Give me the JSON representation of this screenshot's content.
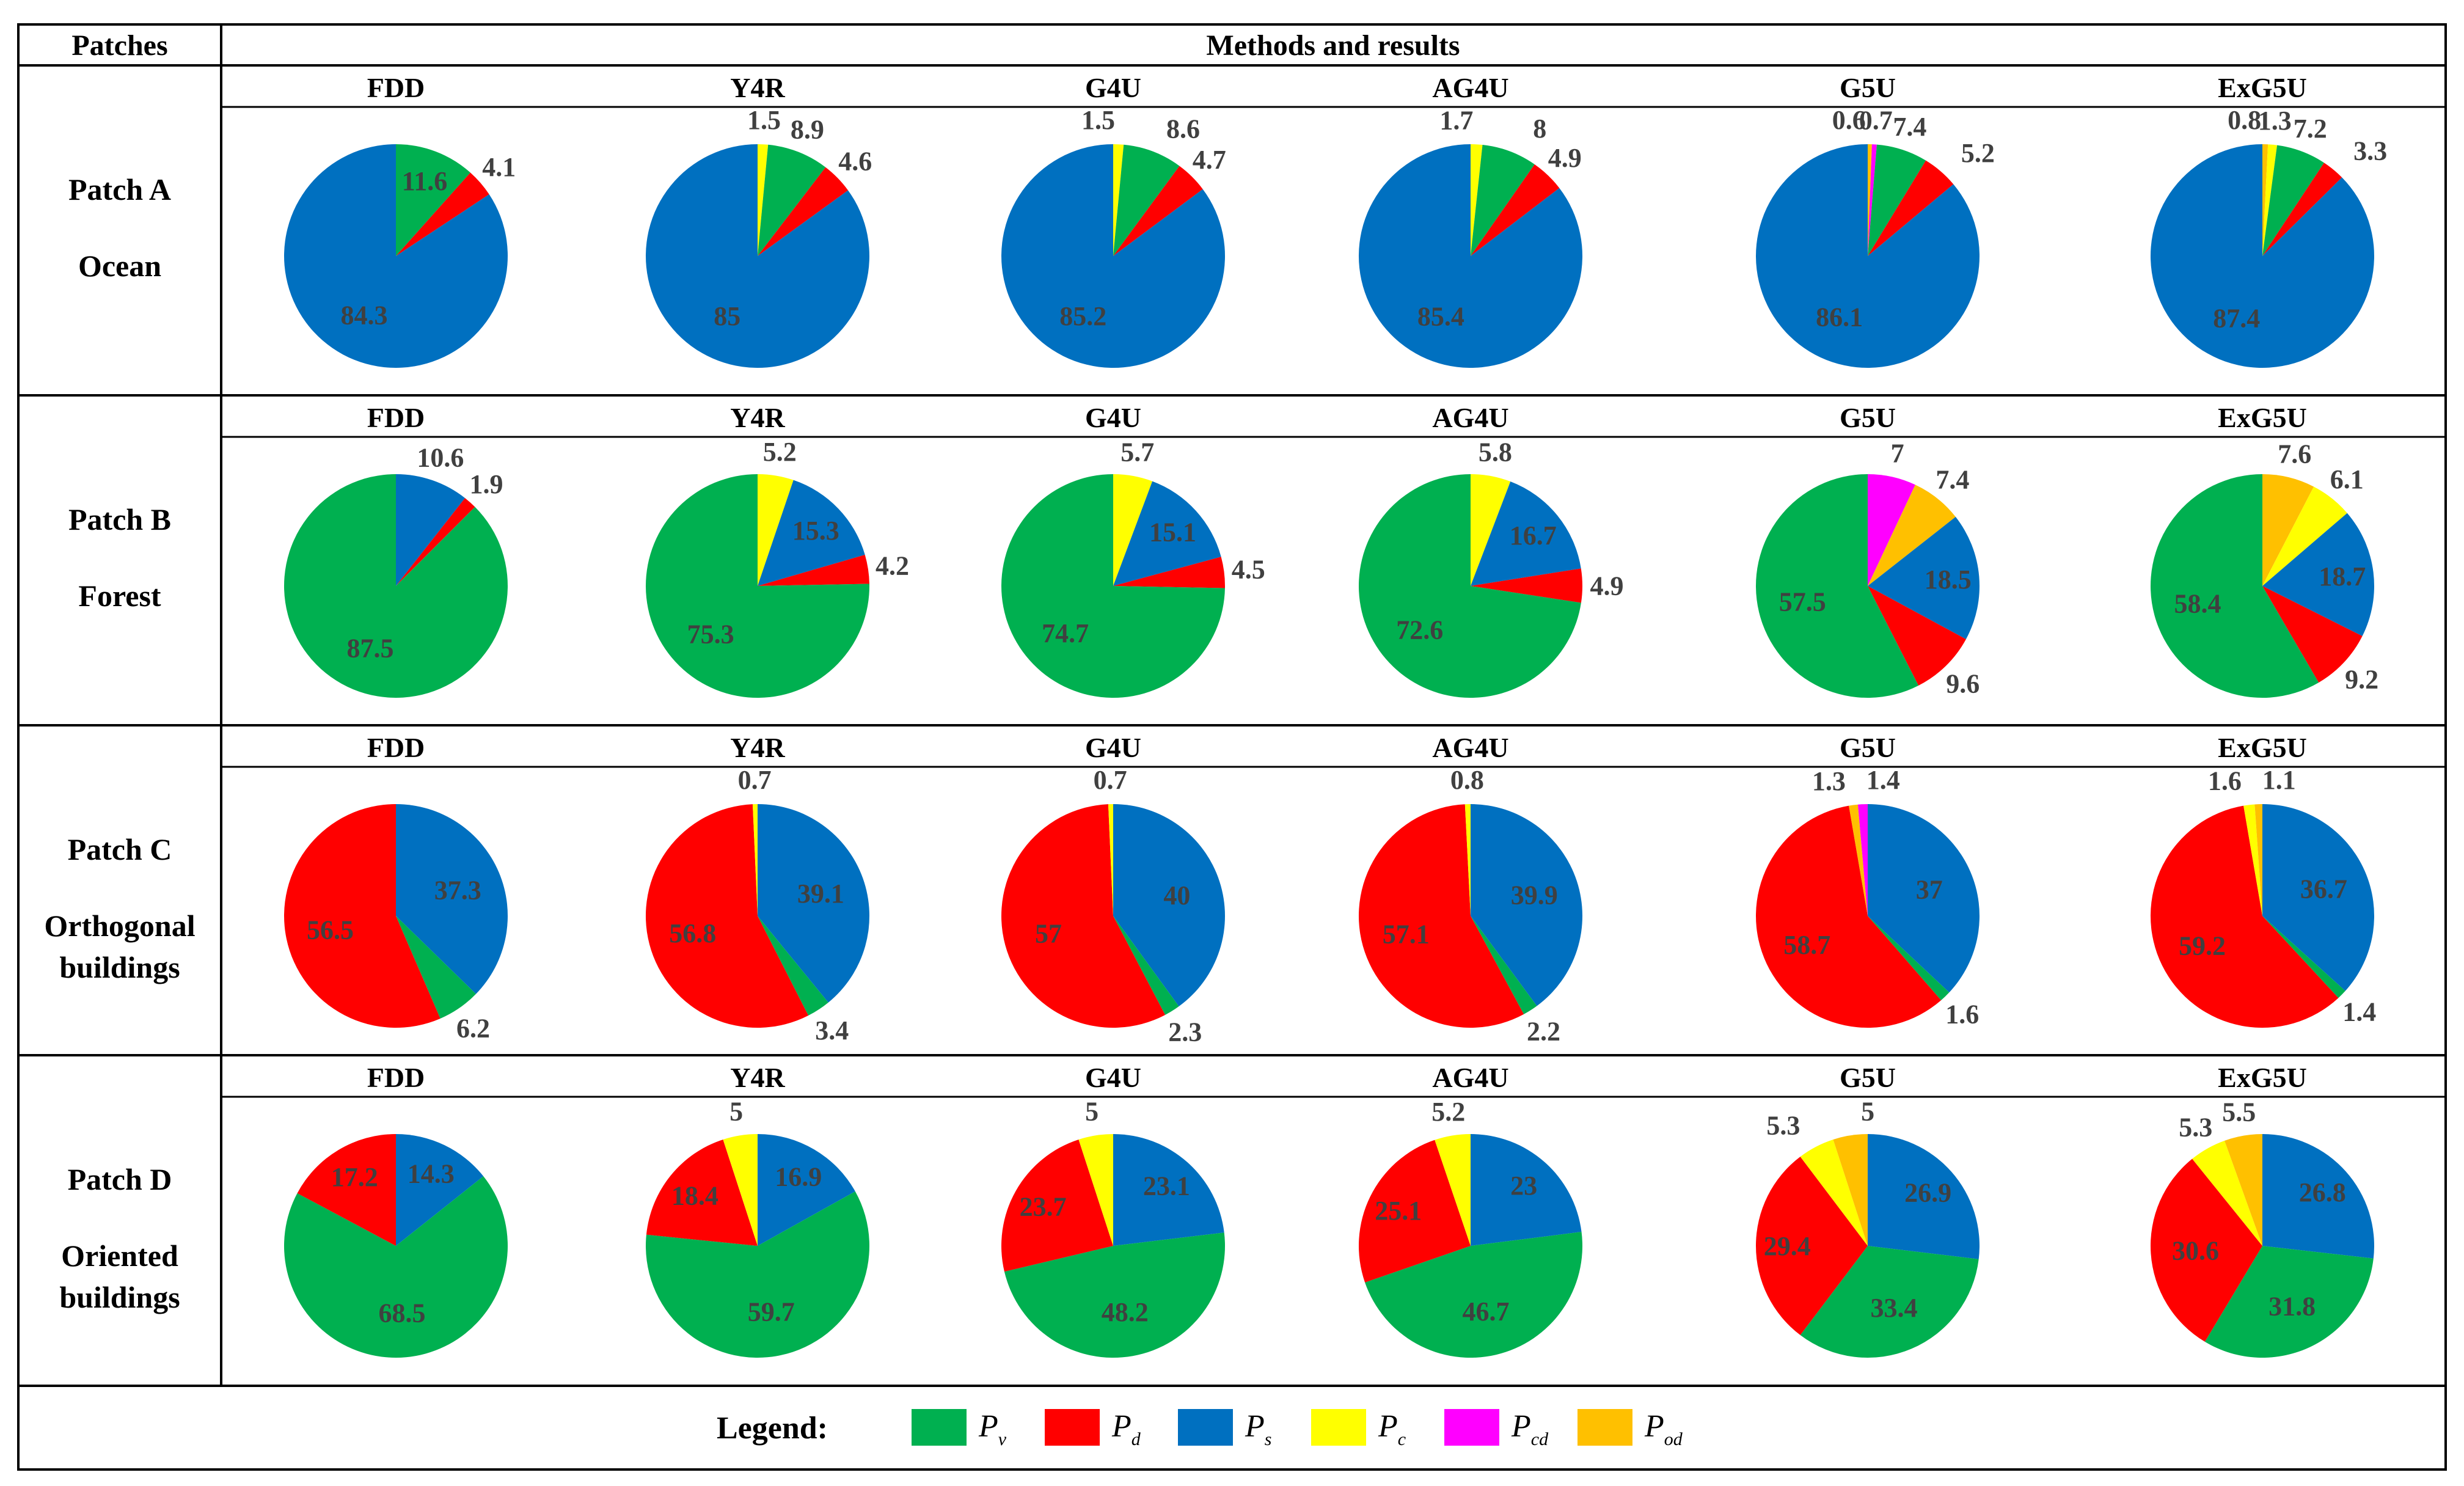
{
  "header": {
    "patches": "Patches",
    "methods": "Methods and results"
  },
  "colors": {
    "Pv": "#00b050",
    "Pd": "#ff0000",
    "Ps": "#0070c0",
    "Pc": "#ffff00",
    "Pcd": "#ff00ff",
    "Pod": "#ffc000"
  },
  "legend": {
    "title": "Legend:",
    "items": [
      {
        "key": "Pv",
        "base": "P",
        "sub": "v"
      },
      {
        "key": "Pd",
        "base": "P",
        "sub": "d"
      },
      {
        "key": "Ps",
        "base": "P",
        "sub": "s"
      },
      {
        "key": "Pc",
        "base": "P",
        "sub": "c"
      },
      {
        "key": "Pcd",
        "base": "P",
        "sub": "cd"
      },
      {
        "key": "Pod",
        "base": "P",
        "sub": "od"
      }
    ]
  },
  "chart_data": {
    "type": "pie",
    "title": "Methods and results",
    "methods": [
      "FDD",
      "Y4R",
      "G4U",
      "AG4U",
      "G5U",
      "ExG5U"
    ],
    "patches": [
      {
        "label": "Patch A",
        "sublabel": "Ocean",
        "pies": [
          {
            "method": "FDD",
            "slices": [
              {
                "c": "Pv",
                "v": 11.6,
                "t": "11.6"
              },
              {
                "c": "Pd",
                "v": 4.1,
                "t": "4.1"
              },
              {
                "c": "Ps",
                "v": 84.3,
                "t": "84.3"
              }
            ]
          },
          {
            "method": "Y4R",
            "slices": [
              {
                "c": "Pc",
                "v": 1.5,
                "t": "1.5"
              },
              {
                "c": "Pv",
                "v": 8.9,
                "t": "8.9"
              },
              {
                "c": "Pd",
                "v": 4.6,
                "t": "4.6"
              },
              {
                "c": "Ps",
                "v": 85,
                "t": "85"
              }
            ]
          },
          {
            "method": "G4U",
            "slices": [
              {
                "c": "Pc",
                "v": 1.5,
                "t": "1.5"
              },
              {
                "c": "Pv",
                "v": 8.6,
                "t": "8.6"
              },
              {
                "c": "Pd",
                "v": 4.7,
                "t": "4.7"
              },
              {
                "c": "Ps",
                "v": 85.2,
                "t": "85.2"
              }
            ]
          },
          {
            "method": "AG4U",
            "slices": [
              {
                "c": "Pc",
                "v": 1.7,
                "t": "1.7"
              },
              {
                "c": "Pv",
                "v": 8,
                "t": "8"
              },
              {
                "c": "Pd",
                "v": 4.9,
                "t": "4.9"
              },
              {
                "c": "Ps",
                "v": 85.4,
                "t": "85.4"
              }
            ]
          },
          {
            "method": "G5U",
            "slices": [
              {
                "c": "Pod",
                "v": 0.6,
                "t": "0.6"
              },
              {
                "c": "Pcd",
                "v": 0.7,
                "t": "0.7"
              },
              {
                "c": "Pv",
                "v": 7.4,
                "t": "7.4"
              },
              {
                "c": "Pd",
                "v": 5.2,
                "t": "5.2"
              },
              {
                "c": "Ps",
                "v": 86.1,
                "t": "86.1"
              }
            ]
          },
          {
            "method": "ExG5U",
            "slices": [
              {
                "c": "Pod",
                "v": 0.8,
                "t": "0.8"
              },
              {
                "c": "Pc",
                "v": 1.3,
                "t": "1.3"
              },
              {
                "c": "Pv",
                "v": 7.2,
                "t": "7.2"
              },
              {
                "c": "Pd",
                "v": 3.3,
                "t": "3.3"
              },
              {
                "c": "Ps",
                "v": 87.4,
                "t": "87.4"
              }
            ]
          }
        ]
      },
      {
        "label": "Patch B",
        "sublabel": "Forest",
        "pies": [
          {
            "method": "FDD",
            "slices": [
              {
                "c": "Ps",
                "v": 10.6,
                "t": "10.6"
              },
              {
                "c": "Pd",
                "v": 1.9,
                "t": "1.9"
              },
              {
                "c": "Pv",
                "v": 87.5,
                "t": "87.5"
              }
            ]
          },
          {
            "method": "Y4R",
            "slices": [
              {
                "c": "Pc",
                "v": 5.2,
                "t": "5.2"
              },
              {
                "c": "Ps",
                "v": 15.3,
                "t": "15.3"
              },
              {
                "c": "Pd",
                "v": 4.2,
                "t": "4.2"
              },
              {
                "c": "Pv",
                "v": 75.3,
                "t": "75.3"
              }
            ]
          },
          {
            "method": "G4U",
            "slices": [
              {
                "c": "Pc",
                "v": 5.7,
                "t": "5.7"
              },
              {
                "c": "Ps",
                "v": 15.1,
                "t": "15.1"
              },
              {
                "c": "Pd",
                "v": 4.5,
                "t": "4.5"
              },
              {
                "c": "Pv",
                "v": 74.7,
                "t": "74.7"
              }
            ]
          },
          {
            "method": "AG4U",
            "slices": [
              {
                "c": "Pc",
                "v": 5.8,
                "t": "5.8"
              },
              {
                "c": "Ps",
                "v": 16.7,
                "t": "16.7"
              },
              {
                "c": "Pd",
                "v": 4.9,
                "t": "4.9"
              },
              {
                "c": "Pv",
                "v": 72.6,
                "t": "72.6"
              }
            ]
          },
          {
            "method": "G5U",
            "slices": [
              {
                "c": "Pcd",
                "v": 7,
                "t": "7"
              },
              {
                "c": "Pod",
                "v": 7.4,
                "t": "7.4"
              },
              {
                "c": "Ps",
                "v": 18.5,
                "t": "18.5"
              },
              {
                "c": "Pd",
                "v": 9.6,
                "t": "9.6"
              },
              {
                "c": "Pv",
                "v": 57.5,
                "t": "57.5"
              }
            ]
          },
          {
            "method": "ExG5U",
            "slices": [
              {
                "c": "Pod",
                "v": 7.6,
                "t": "7.6"
              },
              {
                "c": "Pc",
                "v": 6.1,
                "t": "6.1"
              },
              {
                "c": "Ps",
                "v": 18.7,
                "t": "18.7"
              },
              {
                "c": "Pd",
                "v": 9.2,
                "t": "9.2"
              },
              {
                "c": "Pv",
                "v": 58.4,
                "t": "58.4"
              }
            ]
          }
        ]
      },
      {
        "label": "Patch C",
        "sublabel": "Orthogonal buildings",
        "pies": [
          {
            "method": "FDD",
            "slices": [
              {
                "c": "Ps",
                "v": 37.3,
                "t": "37.3"
              },
              {
                "c": "Pv",
                "v": 6.2,
                "t": "6.2"
              },
              {
                "c": "Pd",
                "v": 56.5,
                "t": "56.5"
              }
            ]
          },
          {
            "method": "Y4R",
            "slices": [
              {
                "c": "Ps",
                "v": 39.1,
                "t": "39.1"
              },
              {
                "c": "Pv",
                "v": 3.4,
                "t": "3.4"
              },
              {
                "c": "Pd",
                "v": 56.8,
                "t": "56.8"
              },
              {
                "c": "Pc",
                "v": 0.7,
                "t": "0.7"
              }
            ]
          },
          {
            "method": "G4U",
            "slices": [
              {
                "c": "Ps",
                "v": 40,
                "t": "40"
              },
              {
                "c": "Pv",
                "v": 2.3,
                "t": "2.3"
              },
              {
                "c": "Pd",
                "v": 57,
                "t": "57"
              },
              {
                "c": "Pc",
                "v": 0.7,
                "t": "0.7"
              }
            ]
          },
          {
            "method": "AG4U",
            "slices": [
              {
                "c": "Ps",
                "v": 39.9,
                "t": "39.9"
              },
              {
                "c": "Pv",
                "v": 2.2,
                "t": "2.2"
              },
              {
                "c": "Pd",
                "v": 57.1,
                "t": "57.1"
              },
              {
                "c": "Pc",
                "v": 0.8,
                "t": "0.8"
              }
            ]
          },
          {
            "method": "G5U",
            "slices": [
              {
                "c": "Ps",
                "v": 37,
                "t": "37"
              },
              {
                "c": "Pv",
                "v": 1.6,
                "t": "1.6"
              },
              {
                "c": "Pd",
                "v": 58.7,
                "t": "58.7"
              },
              {
                "c": "Pod",
                "v": 1.3,
                "t": "1.3"
              },
              {
                "c": "Pcd",
                "v": 1.4,
                "t": "1.4"
              }
            ]
          },
          {
            "method": "ExG5U",
            "slices": [
              {
                "c": "Ps",
                "v": 36.7,
                "t": "36.7"
              },
              {
                "c": "Pv",
                "v": 1.4,
                "t": "1.4"
              },
              {
                "c": "Pd",
                "v": 59.2,
                "t": "59.2"
              },
              {
                "c": "Pc",
                "v": 1.6,
                "t": "1.6"
              },
              {
                "c": "Pod",
                "v": 1.1,
                "t": "1.1"
              }
            ]
          }
        ]
      },
      {
        "label": "Patch D",
        "sublabel": "Oriented buildings",
        "pies": [
          {
            "method": "FDD",
            "slices": [
              {
                "c": "Ps",
                "v": 14.3,
                "t": "14.3"
              },
              {
                "c": "Pv",
                "v": 68.5,
                "t": "68.5"
              },
              {
                "c": "Pd",
                "v": 17.2,
                "t": "17.2"
              }
            ]
          },
          {
            "method": "Y4R",
            "slices": [
              {
                "c": "Ps",
                "v": 16.9,
                "t": "16.9"
              },
              {
                "c": "Pv",
                "v": 59.7,
                "t": "59.7"
              },
              {
                "c": "Pd",
                "v": 18.4,
                "t": "18.4"
              },
              {
                "c": "Pc",
                "v": 5,
                "t": "5"
              }
            ]
          },
          {
            "method": "G4U",
            "slices": [
              {
                "c": "Ps",
                "v": 23.1,
                "t": "23.1"
              },
              {
                "c": "Pv",
                "v": 48.2,
                "t": "48.2"
              },
              {
                "c": "Pd",
                "v": 23.7,
                "t": "23.7"
              },
              {
                "c": "Pc",
                "v": 5,
                "t": "5"
              }
            ]
          },
          {
            "method": "AG4U",
            "slices": [
              {
                "c": "Ps",
                "v": 23,
                "t": "23"
              },
              {
                "c": "Pv",
                "v": 46.7,
                "t": "46.7"
              },
              {
                "c": "Pd",
                "v": 25.1,
                "t": "25.1"
              },
              {
                "c": "Pc",
                "v": 5.2,
                "t": "5.2"
              }
            ]
          },
          {
            "method": "G5U",
            "slices": [
              {
                "c": "Ps",
                "v": 26.9,
                "t": "26.9"
              },
              {
                "c": "Pv",
                "v": 33.4,
                "t": "33.4"
              },
              {
                "c": "Pd",
                "v": 29.4,
                "t": "29.4"
              },
              {
                "c": "Pc",
                "v": 5.3,
                "t": "5.3"
              },
              {
                "c": "Pod",
                "v": 5,
                "t": "5"
              }
            ]
          },
          {
            "method": "ExG5U",
            "slices": [
              {
                "c": "Ps",
                "v": 26.8,
                "t": "26.8"
              },
              {
                "c": "Pv",
                "v": 31.8,
                "t": "31.8"
              },
              {
                "c": "Pd",
                "v": 30.6,
                "t": "30.6"
              },
              {
                "c": "Pc",
                "v": 5.3,
                "t": "5.3"
              },
              {
                "c": "Pod",
                "v": 5.5,
                "t": "5.5"
              }
            ]
          }
        ]
      }
    ]
  }
}
